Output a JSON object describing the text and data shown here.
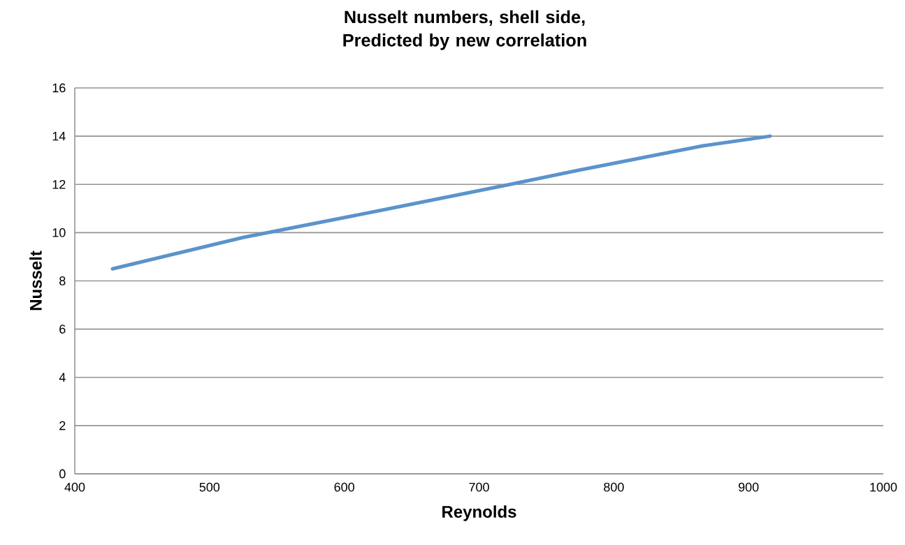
{
  "chart_data": {
    "type": "line",
    "title": "Nusselt numbers, shell side, Predicted by new correlation",
    "xlabel": "Reynolds",
    "ylabel": "Nusselt",
    "series": [
      {
        "color": "#5b93cb",
        "x": [
          428,
          525,
          625,
          723,
          775,
          866,
          916
        ],
        "values": [
          8.5,
          9.8,
          10.9,
          12.0,
          12.6,
          13.6,
          14.0
        ]
      }
    ],
    "xlim": [
      400,
      1000
    ],
    "ylim": [
      0,
      16
    ],
    "xticks": [
      400,
      500,
      600,
      700,
      800,
      900,
      1000
    ],
    "yticks": [
      0,
      2,
      4,
      6,
      8,
      10,
      12,
      14,
      16
    ],
    "grid": "y",
    "marker": "none",
    "line_style": "solid"
  }
}
